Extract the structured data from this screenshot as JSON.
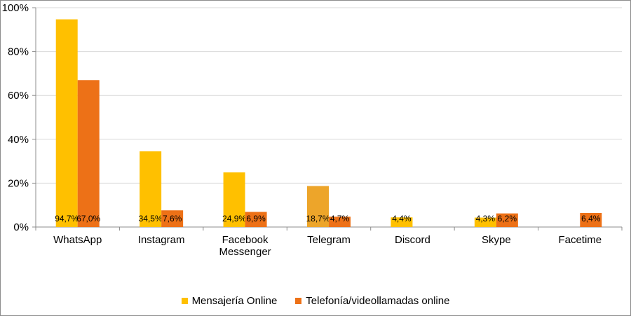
{
  "chart_data": {
    "type": "bar",
    "categories": [
      "WhatsApp",
      "Instagram",
      "Facebook Messenger",
      "Telegram",
      "Discord",
      "Skype",
      "Facetime"
    ],
    "category_lines": [
      [
        "WhatsApp"
      ],
      [
        "Instagram"
      ],
      [
        "Facebook",
        "Messenger"
      ],
      [
        "Telegram"
      ],
      [
        "Discord"
      ],
      [
        "Skype"
      ],
      [
        "Facetime"
      ]
    ],
    "series": [
      {
        "name": "Mensajería Online",
        "color": "#FFC000",
        "values": [
          94.7,
          34.5,
          24.9,
          18.7,
          4.4,
          4.3,
          null
        ],
        "labels": [
          "94,7%",
          "34,5%",
          "24,9%",
          "18,7%",
          "4,4%",
          "4,3%",
          ""
        ]
      },
      {
        "name": "Telefonía/videollamadas online",
        "color": "#ED7117",
        "values": [
          67.0,
          7.6,
          6.9,
          4.7,
          null,
          6.2,
          6.4
        ],
        "labels": [
          "67,0%",
          "7,6%",
          "6,9%",
          "4,7%",
          "",
          "6,2%",
          "6,4%"
        ]
      }
    ],
    "highlight": {
      "category_index": 3,
      "series_index": 0,
      "color": "#EDA52A"
    },
    "y_ticks": [
      0,
      20,
      40,
      60,
      80,
      100
    ],
    "y_tick_labels": [
      "0%",
      "20%",
      "40%",
      "60%",
      "80%",
      "100%"
    ],
    "ylim": [
      0,
      100
    ],
    "grid": true,
    "legend_position": "bottom"
  }
}
